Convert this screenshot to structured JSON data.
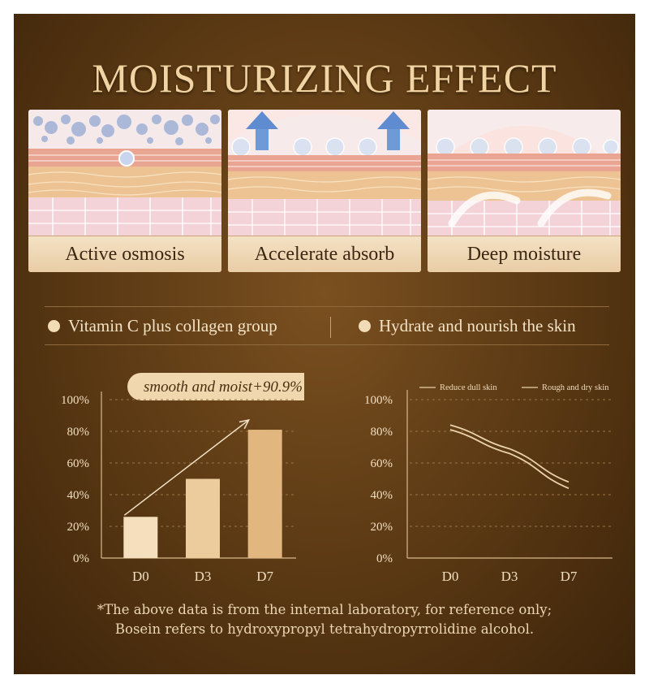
{
  "title": "MOISTURIZING EFFECT",
  "panels": [
    {
      "label": "Active osmosis"
    },
    {
      "label": "Accelerate absorb"
    },
    {
      "label": "Deep moisture"
    }
  ],
  "features": [
    {
      "label": "Vitamin C plus collagen group"
    },
    {
      "label": "Hydrate and nourish the skin"
    }
  ],
  "chart_data": [
    {
      "type": "bar",
      "title": "",
      "badge": "smooth and moist+90.9%",
      "categories": [
        "D0",
        "D3",
        "D7"
      ],
      "values": [
        26,
        50,
        81
      ],
      "ylim": [
        0,
        100
      ],
      "yticks": [
        "0%",
        "20%",
        "40%",
        "60%",
        "80%",
        "100%"
      ],
      "bar_colors": [
        "#f6dfbc",
        "#eccb9d",
        "#e2b67f"
      ],
      "grid": true,
      "trend_arrow": true
    },
    {
      "type": "line",
      "title": "",
      "categories": [
        "D0",
        "D3",
        "D7"
      ],
      "series": [
        {
          "name": "Reduce dull skin",
          "values": [
            84,
            69,
            48
          ]
        },
        {
          "name": "Rough and dry skin",
          "values": [
            81,
            66,
            44
          ]
        }
      ],
      "ylim": [
        0,
        100
      ],
      "yticks": [
        "0%",
        "20%",
        "40%",
        "60%",
        "80%",
        "100%"
      ],
      "legend": "top",
      "grid": true,
      "line_color": "#e9d2ac"
    }
  ],
  "footnote": {
    "line1": "*The above data is from the internal laboratory, for reference only;",
    "line2": "Bosein refers to hydroxypropyl tetrahydropyrrolidine alcohol."
  }
}
